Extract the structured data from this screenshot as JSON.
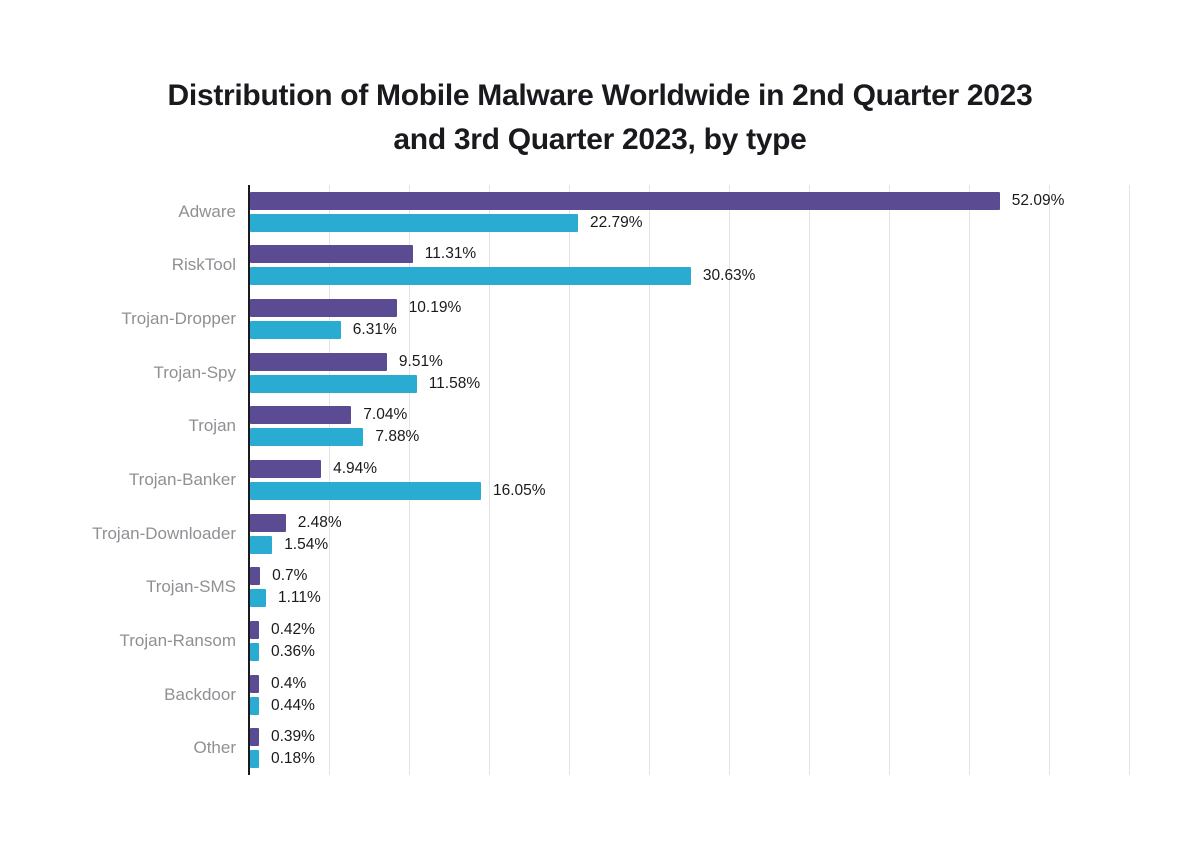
{
  "title": "Distribution of Mobile Malware Worldwide in 2nd Quarter 2023 and 3rd Quarter 2023, by type",
  "chart_data": {
    "type": "bar",
    "orientation": "horizontal",
    "title": "Distribution of Mobile Malware Worldwide in 2nd Quarter 2023 and 3rd Quarter 2023, by type",
    "categories": [
      "Adware",
      "RiskTool",
      "Trojan-Dropper",
      "Trojan-Spy",
      "Trojan",
      "Trojan-Banker",
      "Trojan-Downloader",
      "Trojan-SMS",
      "Trojan-Ransom",
      "Backdoor",
      "Other"
    ],
    "series": [
      {
        "key": "q2-2023",
        "name": "2nd Quarter 2023",
        "color": "#5a4b92",
        "values": [
          52.09,
          11.31,
          10.19,
          9.51,
          7.04,
          4.94,
          2.48,
          0.7,
          0.42,
          0.4,
          0.39
        ],
        "labels": [
          "52.09%",
          "11.31%",
          "10.19%",
          "9.51%",
          "7.04%",
          "4.94%",
          "2.48%",
          "0.7%",
          "0.42%",
          "0.4%",
          "0.39%"
        ]
      },
      {
        "key": "q3-2023",
        "name": "3rd Quarter 2023",
        "color": "#29abd2",
        "values": [
          22.79,
          30.63,
          6.31,
          11.58,
          7.88,
          16.05,
          1.54,
          1.11,
          0.36,
          0.44,
          0.18
        ],
        "labels": [
          "22.79%",
          "30.63%",
          "6.31%",
          "11.58%",
          "7.88%",
          "16.05%",
          "1.54%",
          "1.11%",
          "0.36%",
          "0.44%",
          "0.18%"
        ]
      }
    ],
    "xlim": [
      0,
      66
    ],
    "grid": "vertical-only",
    "legend": "none",
    "value_label_position": "outside-end",
    "colors": {
      "axis": "#1a1a1e",
      "gridline": "#e4e4e6",
      "category_label": "#8f9094",
      "value_label": "#1a1a1e"
    }
  }
}
